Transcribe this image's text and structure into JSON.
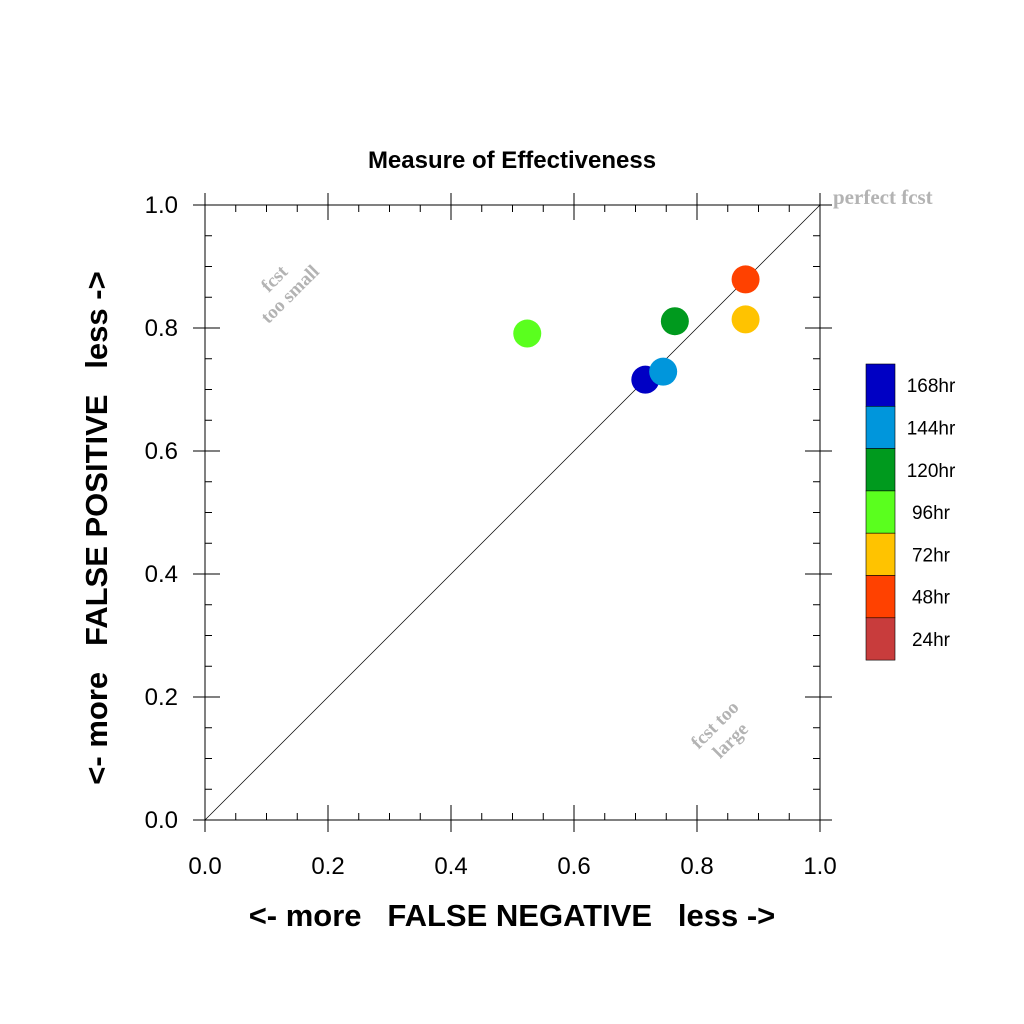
{
  "chart_data": {
    "type": "scatter",
    "title": "Measure of Effectiveness",
    "xlabel": "<- more   FALSE NEGATIVE   less ->",
    "ylabel": "<- more   FALSE POSITIVE   less ->",
    "xlim": [
      0.0,
      1.0
    ],
    "ylim": [
      0.0,
      1.0
    ],
    "x_ticks": [
      "0.0",
      "0.2",
      "0.4",
      "0.6",
      "0.8",
      "1.0"
    ],
    "y_ticks": [
      "0.0",
      "0.2",
      "0.4",
      "0.6",
      "0.8",
      "1.0"
    ],
    "grid": false,
    "diagonal_line": true,
    "annotations": {
      "perfect": "perfect fcst",
      "too_small_line1": "fcst",
      "too_small_line2": "too small",
      "too_large_line1": "fcst too",
      "too_large_line2": "large"
    },
    "annotation_color": "#b3b3b3",
    "legend_position": "right",
    "legend": [
      {
        "label": "168hr",
        "color": "#0000c4"
      },
      {
        "label": "144hr",
        "color": "#0096dc"
      },
      {
        "label": "120hr",
        "color": "#009a1e"
      },
      {
        "label": "96hr",
        "color": "#5aff1e"
      },
      {
        "label": "72hr",
        "color": "#ffc300"
      },
      {
        "label": "48hr",
        "color": "#ff4100"
      },
      {
        "label": "24hr",
        "color": "#c83c3c"
      }
    ],
    "points": [
      {
        "series": "168hr",
        "x": 0.716,
        "y": 0.716
      },
      {
        "series": "144hr",
        "x": 0.745,
        "y": 0.729
      },
      {
        "series": "120hr",
        "x": 0.764,
        "y": 0.811
      },
      {
        "series": "96hr",
        "x": 0.524,
        "y": 0.791
      },
      {
        "series": "72hr",
        "x": 0.879,
        "y": 0.814
      },
      {
        "series": "48hr",
        "x": 0.879,
        "y": 0.879
      }
    ]
  }
}
